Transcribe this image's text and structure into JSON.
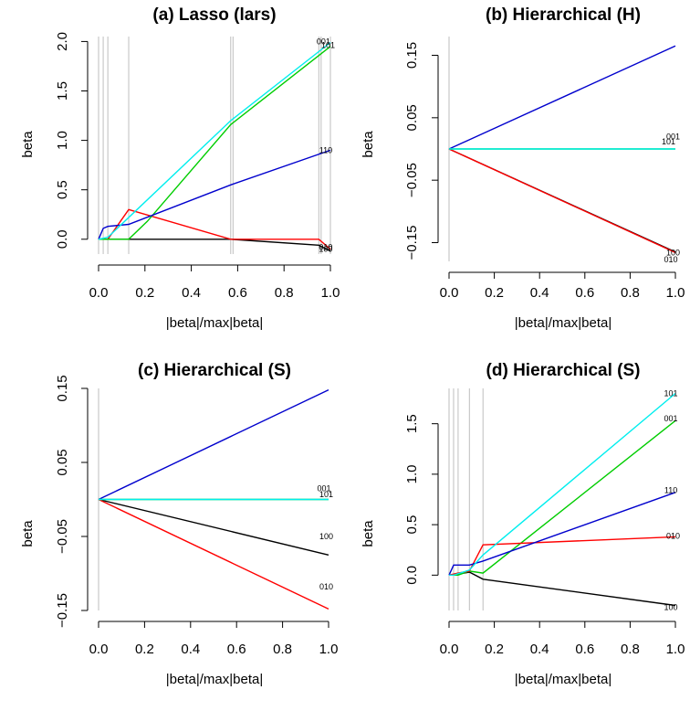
{
  "figure": {
    "panels": [
      {
        "id": "a",
        "title": "(a) Lasso (lars)",
        "xlabel": "|beta|/max|beta|",
        "ylabel": "beta"
      },
      {
        "id": "b",
        "title": "(b) Hierarchical (H)",
        "xlabel": "|beta|/max|beta|",
        "ylabel": "beta"
      },
      {
        "id": "c",
        "title": "(c) Hierarchical (S)",
        "xlabel": "|beta|/max|beta|",
        "ylabel": "beta"
      },
      {
        "id": "d",
        "title": "(d) Hierarchical  (S)",
        "xlabel": "|beta|/max|beta|",
        "ylabel": "beta"
      }
    ]
  },
  "colors": {
    "black": "#000000",
    "red": "#ff0000",
    "green": "#00cd00",
    "blue": "#0000cd",
    "cyan": "#00eeee",
    "vline": "#bebebe"
  },
  "chart_data": [
    {
      "type": "line",
      "title": "(a) Lasso (lars)",
      "xlabel": "|beta|/max|beta|",
      "ylabel": "beta",
      "xlim": [
        0,
        1
      ],
      "ylim": [
        -0.15,
        2.05
      ],
      "xticks": [
        0.0,
        0.2,
        0.4,
        0.6,
        0.8,
        1.0
      ],
      "xtick_labels": [
        "0.0",
        "0.2",
        "0.4",
        "0.6",
        "0.8",
        "1.0"
      ],
      "yticks": [
        0.0,
        0.5,
        1.0,
        1.5,
        2.0
      ],
      "ytick_labels": [
        "0.0",
        "0.5",
        "1.0",
        "1.5",
        "2.0"
      ],
      "vlines": [
        0.0,
        0.02,
        0.04,
        0.13,
        0.57,
        0.58,
        0.95,
        0.96,
        1.0
      ],
      "series": [
        {
          "color": "black",
          "label": "100",
          "x": [
            0,
            0.13,
            0.57,
            0.95,
            1.0
          ],
          "y": [
            0,
            0,
            0,
            -0.06,
            -0.12
          ]
        },
        {
          "color": "red",
          "label": "010",
          "x": [
            0,
            0.04,
            0.13,
            0.57,
            0.95,
            1.0
          ],
          "y": [
            0,
            0,
            0.3,
            0,
            0,
            -0.1
          ]
        },
        {
          "color": "green",
          "label": "101",
          "x": [
            0,
            0.13,
            0.21,
            0.57,
            1.0
          ],
          "y": [
            0,
            0,
            0.18,
            1.16,
            1.95
          ]
        },
        {
          "color": "blue",
          "label": "110",
          "x": [
            0,
            0.02,
            0.04,
            0.13,
            0.57,
            1.0
          ],
          "y": [
            0,
            0.11,
            0.13,
            0.15,
            0.55,
            0.9
          ]
        },
        {
          "color": "cyan",
          "label": "001",
          "x": [
            0,
            0.04,
            0.57,
            1.0
          ],
          "y": [
            0,
            0.02,
            1.2,
            1.99
          ]
        }
      ],
      "end_labels": [
        {
          "text": "001",
          "x": 0.97,
          "y": 2.0
        },
        {
          "text": "101",
          "x": 0.99,
          "y": 1.96
        },
        {
          "text": "110",
          "x": 0.98,
          "y": 0.9
        },
        {
          "text": "010",
          "x": 0.98,
          "y": -0.08
        },
        {
          "text": "100",
          "x": 0.98,
          "y": -0.1
        }
      ]
    },
    {
      "type": "line",
      "title": "(b) Hierarchical (H)",
      "xlabel": "|beta|/max|beta|",
      "ylabel": "beta",
      "xlim": [
        0,
        1
      ],
      "ylim": [
        -0.18,
        0.18
      ],
      "xticks": [
        0.0,
        0.2,
        0.4,
        0.6,
        0.8,
        1.0
      ],
      "xtick_labels": [
        "0.0",
        "0.2",
        "0.4",
        "0.6",
        "0.8",
        "1.0"
      ],
      "yticks": [
        -0.15,
        -0.05,
        0.05,
        0.15
      ],
      "ytick_labels": [
        "−0.15",
        "−0.05",
        "0.05",
        "0.15"
      ],
      "vlines": [
        0.0
      ],
      "series": [
        {
          "color": "blue",
          "label": "110",
          "x": [
            0,
            1
          ],
          "y": [
            0,
            0.165
          ]
        },
        {
          "color": "black",
          "label": "100",
          "x": [
            0,
            1
          ],
          "y": [
            0,
            -0.165
          ]
        },
        {
          "color": "red",
          "label": "010",
          "x": [
            0,
            1
          ],
          "y": [
            0,
            -0.166
          ]
        },
        {
          "color": "green",
          "label": "001",
          "x": [
            0,
            1
          ],
          "y": [
            0,
            0
          ]
        },
        {
          "color": "cyan",
          "label": "101",
          "x": [
            0,
            1
          ],
          "y": [
            0,
            0
          ]
        }
      ],
      "end_labels": [
        {
          "text": "001",
          "x": 0.99,
          "y": 0.02
        },
        {
          "text": "101",
          "x": 0.97,
          "y": 0.012
        },
        {
          "text": "100",
          "x": 0.99,
          "y": -0.166
        },
        {
          "text": "010",
          "x": 0.98,
          "y": -0.177
        }
      ]
    },
    {
      "type": "line",
      "title": "(c) Hierarchical (S)",
      "xlabel": "|beta|/max|beta|",
      "ylabel": "beta",
      "xlim": [
        0,
        1
      ],
      "ylim": [
        -0.15,
        0.15
      ],
      "xticks": [
        0.0,
        0.2,
        0.4,
        0.6,
        0.8,
        1.0
      ],
      "xtick_labels": [
        "0.0",
        "0.2",
        "0.4",
        "0.6",
        "0.8",
        "1.0"
      ],
      "yticks": [
        -0.15,
        -0.05,
        0.05,
        0.15
      ],
      "ytick_labels": [
        "−0.15",
        "−0.05",
        "0.05",
        "0.15"
      ],
      "vlines": [
        0.0
      ],
      "series": [
        {
          "color": "blue",
          "label": "110",
          "x": [
            0,
            1
          ],
          "y": [
            0,
            0.148
          ]
        },
        {
          "color": "black",
          "label": "100",
          "x": [
            0,
            1
          ],
          "y": [
            0,
            -0.075
          ]
        },
        {
          "color": "red",
          "label": "010",
          "x": [
            0,
            1
          ],
          "y": [
            0,
            -0.148
          ]
        },
        {
          "color": "green",
          "label": "001",
          "x": [
            0,
            1
          ],
          "y": [
            0,
            0
          ]
        },
        {
          "color": "cyan",
          "label": "101",
          "x": [
            0,
            1
          ],
          "y": [
            0,
            0
          ]
        }
      ],
      "end_labels": [
        {
          "text": "001",
          "x": 0.98,
          "y": 0.015
        },
        {
          "text": "101",
          "x": 0.99,
          "y": 0.007
        },
        {
          "text": "100",
          "x": 0.99,
          "y": -0.05
        },
        {
          "text": "010",
          "x": 0.99,
          "y": -0.118
        }
      ]
    },
    {
      "type": "line",
      "title": "(d) Hierarchical  (S)",
      "xlabel": "|beta|/max|beta|",
      "ylabel": "beta",
      "xlim": [
        0,
        1
      ],
      "ylim": [
        -0.35,
        1.85
      ],
      "xticks": [
        0.0,
        0.2,
        0.4,
        0.6,
        0.8,
        1.0
      ],
      "xtick_labels": [
        "0.0",
        "0.2",
        "0.4",
        "0.6",
        "0.8",
        "1.0"
      ],
      "yticks": [
        0.0,
        0.5,
        1.0,
        1.5
      ],
      "ytick_labels": [
        "0.0",
        "0.5",
        "1.0",
        "1.5"
      ],
      "vlines": [
        0.0,
        0.02,
        0.04,
        0.09,
        0.15
      ],
      "series": [
        {
          "color": "black",
          "label": "100",
          "x": [
            0,
            0.04,
            0.09,
            0.15,
            1.0
          ],
          "y": [
            0,
            0.01,
            0.03,
            -0.04,
            -0.3
          ]
        },
        {
          "color": "green",
          "label": "001",
          "x": [
            0,
            0.04,
            0.09,
            0.15,
            1.0
          ],
          "y": [
            0,
            0,
            0.04,
            0.02,
            1.53
          ]
        },
        {
          "color": "red",
          "label": "010",
          "x": [
            0,
            0.04,
            0.09,
            0.15,
            1.0
          ],
          "y": [
            0,
            0.02,
            0.04,
            0.3,
            0.38
          ]
        },
        {
          "color": "blue",
          "label": "110",
          "x": [
            0,
            0.02,
            0.09,
            0.15,
            1.0
          ],
          "y": [
            0,
            0.1,
            0.1,
            0.14,
            0.82
          ]
        },
        {
          "color": "cyan",
          "label": "101",
          "x": [
            0,
            0.02,
            0.09,
            0.15,
            1.0
          ],
          "y": [
            0,
            0,
            0.05,
            0.2,
            1.8
          ]
        }
      ],
      "end_labels": [
        {
          "text": "101",
          "x": 0.98,
          "y": 1.8
        },
        {
          "text": "001",
          "x": 0.98,
          "y": 1.55
        },
        {
          "text": "110",
          "x": 0.98,
          "y": 0.84
        },
        {
          "text": "010",
          "x": 0.99,
          "y": 0.39
        },
        {
          "text": "100",
          "x": 0.98,
          "y": -0.32
        }
      ]
    }
  ]
}
